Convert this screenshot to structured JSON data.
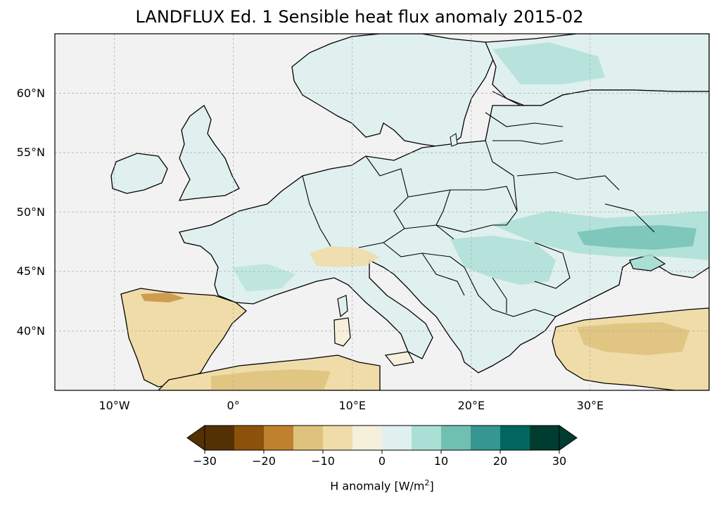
{
  "title": "LANDFLUX Ed. 1 Sensible heat flux anomaly 2015-02",
  "map": {
    "extent": {
      "lon_min": -15,
      "lon_max": 40,
      "lat_min": 35,
      "lat_max": 65
    },
    "lat_ticks": [
      {
        "value": 60,
        "label": "60°N"
      },
      {
        "value": 55,
        "label": "55°N"
      },
      {
        "value": 50,
        "label": "50°N"
      },
      {
        "value": 45,
        "label": "45°N"
      },
      {
        "value": 40,
        "label": "40°N"
      }
    ],
    "lon_ticks": [
      {
        "value": -10,
        "label": "10°W"
      },
      {
        "value": 0,
        "label": "0°"
      },
      {
        "value": 10,
        "label": "10°E"
      },
      {
        "value": 20,
        "label": "20°E"
      },
      {
        "value": 30,
        "label": "30°E"
      }
    ],
    "gridlines": true,
    "ocean_color": "#f2f2f2",
    "coastline_color": "#000000"
  },
  "colorbar": {
    "label_prefix": "H anomaly [W/m",
    "label_sup": "2",
    "label_suffix": "]",
    "min": -30,
    "max": 30,
    "extend": "both",
    "ticks": [
      {
        "value": -30,
        "label": "−30"
      },
      {
        "value": -20,
        "label": "−20"
      },
      {
        "value": -10,
        "label": "−10"
      },
      {
        "value": 0,
        "label": "0"
      },
      {
        "value": 10,
        "label": "10"
      },
      {
        "value": 20,
        "label": "20"
      },
      {
        "value": 30,
        "label": "30"
      }
    ],
    "colors": [
      "#543005",
      "#8c510a",
      "#bf812d",
      "#dfc27d",
      "#f0dca8",
      "#f6efdb",
      "#e0f0ee",
      "#aadfd6",
      "#70c0b2",
      "#35978f",
      "#01665e",
      "#003c30"
    ],
    "under_color": "#543005",
    "over_color": "#003c30"
  }
}
